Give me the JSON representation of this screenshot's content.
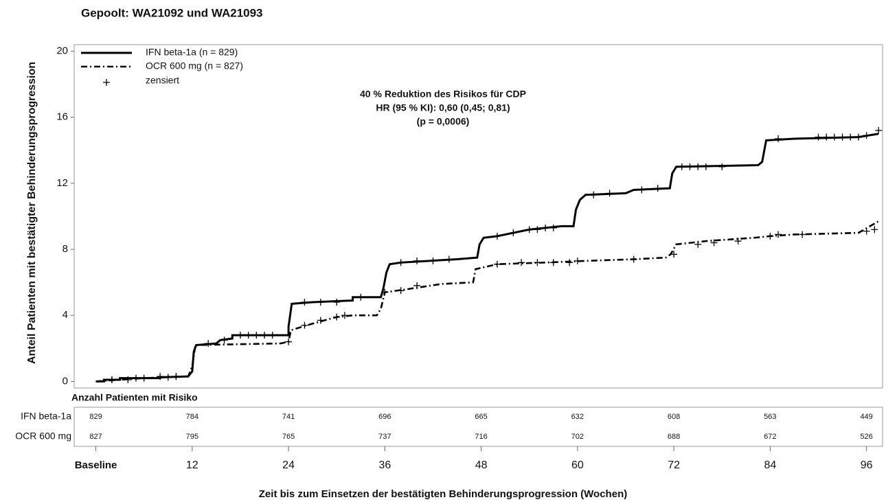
{
  "chart_data": {
    "type": "km",
    "title": "Gepoolt: WA21092 und WA21093",
    "ylabel": "Anteil Patienten mit bestätigter Behinderungsprogression",
    "xlabel": "Zeit bis zum Einsetzen der bestätigten Behinderungsprogression (Wochen)",
    "annotations": [
      "40 % Reduktion des Risikos für CDP",
      "HR (95 % KI): 0,60 (0,45; 0,81)",
      "(p = 0,0006)"
    ],
    "censor_label": "zensiert",
    "xlim": [
      -2.7,
      98
    ],
    "ylim": [
      -0.4,
      20.4
    ],
    "xticks": [
      {
        "value": 0,
        "label": "Baseline"
      },
      12,
      24,
      36,
      48,
      60,
      72,
      84,
      96
    ],
    "yticks": [
      0,
      4,
      8,
      12,
      16,
      20
    ],
    "series": [
      {
        "name": "IFN beta-1a (n = 829)",
        "color": "#000000",
        "dash": "solid",
        "x": [
          0,
          1,
          1,
          3,
          3,
          8,
          8,
          11.5,
          12,
          12.2,
          12.5,
          15,
          15.5,
          17,
          17,
          24,
          24,
          24.4,
          27,
          32,
          32,
          35.5,
          35.8,
          36.2,
          36.6,
          38,
          45,
          47.5,
          47.8,
          48.3,
          50,
          52,
          54,
          58,
          59.5,
          59.8,
          60.3,
          61,
          66,
          67,
          71.5,
          71.8,
          72.3,
          82.5,
          83,
          83.5,
          87,
          95,
          97.5
        ],
        "values": [
          0,
          0,
          0.1,
          0.1,
          0.2,
          0.2,
          0.25,
          0.3,
          0.6,
          1.8,
          2.2,
          2.3,
          2.5,
          2.6,
          2.8,
          2.8,
          3.3,
          4.7,
          4.8,
          4.9,
          5.1,
          5.1,
          5.6,
          6.6,
          7.1,
          7.2,
          7.4,
          7.5,
          8.3,
          8.7,
          8.8,
          9.0,
          9.2,
          9.4,
          9.4,
          10.4,
          11.0,
          11.3,
          11.4,
          11.6,
          11.7,
          12.6,
          13.0,
          13.1,
          13.3,
          14.6,
          14.7,
          14.8,
          15.0
        ],
        "censored_x": [
          2,
          4,
          6,
          9,
          10,
          14,
          16,
          18,
          19,
          20,
          21,
          22,
          26,
          28,
          30,
          33,
          38,
          40,
          42,
          44,
          50,
          52,
          54,
          55,
          56,
          57,
          62,
          64,
          68,
          70,
          73,
          74,
          75,
          76,
          78,
          85,
          90,
          91,
          92,
          93,
          94,
          95,
          96,
          97.5
        ],
        "censored_values": [
          0.1,
          0.1,
          0.2,
          0.25,
          0.3,
          2.3,
          2.5,
          2.8,
          2.8,
          2.8,
          2.8,
          2.8,
          4.8,
          4.8,
          4.8,
          5.1,
          7.2,
          7.3,
          7.3,
          7.4,
          8.8,
          9.0,
          9.2,
          9.2,
          9.3,
          9.3,
          11.3,
          11.4,
          11.6,
          11.7,
          13.0,
          13.0,
          13.0,
          13.0,
          13.0,
          14.7,
          14.8,
          14.8,
          14.8,
          14.8,
          14.8,
          14.8,
          14.9,
          15.2
        ]
      },
      {
        "name": "OCR 600 mg (n = 827)",
        "color": "#000000",
        "dash": "dashdot",
        "x": [
          0,
          3,
          6,
          11.5,
          12,
          12.4,
          23,
          24,
          24.3,
          27,
          30,
          32,
          35,
          35.5,
          36,
          39,
          43,
          47,
          47.3,
          50,
          56,
          61,
          67,
          71,
          71.6,
          72.3,
          76,
          82,
          84,
          87,
          95,
          97.5
        ],
        "values": [
          0,
          0.1,
          0.2,
          0.3,
          0.9,
          2.2,
          2.3,
          2.4,
          3.1,
          3.5,
          3.9,
          4.0,
          4.0,
          4.4,
          5.4,
          5.6,
          5.9,
          6.0,
          6.8,
          7.1,
          7.2,
          7.3,
          7.4,
          7.5,
          7.7,
          8.3,
          8.5,
          8.7,
          8.8,
          8.9,
          9.0,
          9.7
        ],
        "censored_x": [
          2,
          5,
          8,
          10,
          24,
          26,
          28,
          30,
          31,
          36,
          38,
          40,
          50,
          53,
          55,
          57,
          59,
          60,
          67,
          72,
          75,
          77,
          80,
          84,
          85,
          88,
          96,
          97
        ],
        "censored_values": [
          0.1,
          0.2,
          0.3,
          0.3,
          2.4,
          3.4,
          3.7,
          3.9,
          4.0,
          5.4,
          5.5,
          5.8,
          7.1,
          7.2,
          7.2,
          7.2,
          7.2,
          7.3,
          7.4,
          7.7,
          8.3,
          8.4,
          8.5,
          8.8,
          8.9,
          8.9,
          9.1,
          9.2
        ]
      }
    ],
    "risk_table": {
      "title": "Anzahl Patienten mit Risiko",
      "rows": [
        {
          "label": "IFN beta-1a",
          "values": [
            829,
            784,
            741,
            696,
            665,
            632,
            608,
            563,
            449
          ]
        },
        {
          "label": "OCR 600 mg",
          "values": [
            827,
            795,
            765,
            737,
            716,
            702,
            688,
            672,
            526
          ]
        }
      ]
    }
  }
}
